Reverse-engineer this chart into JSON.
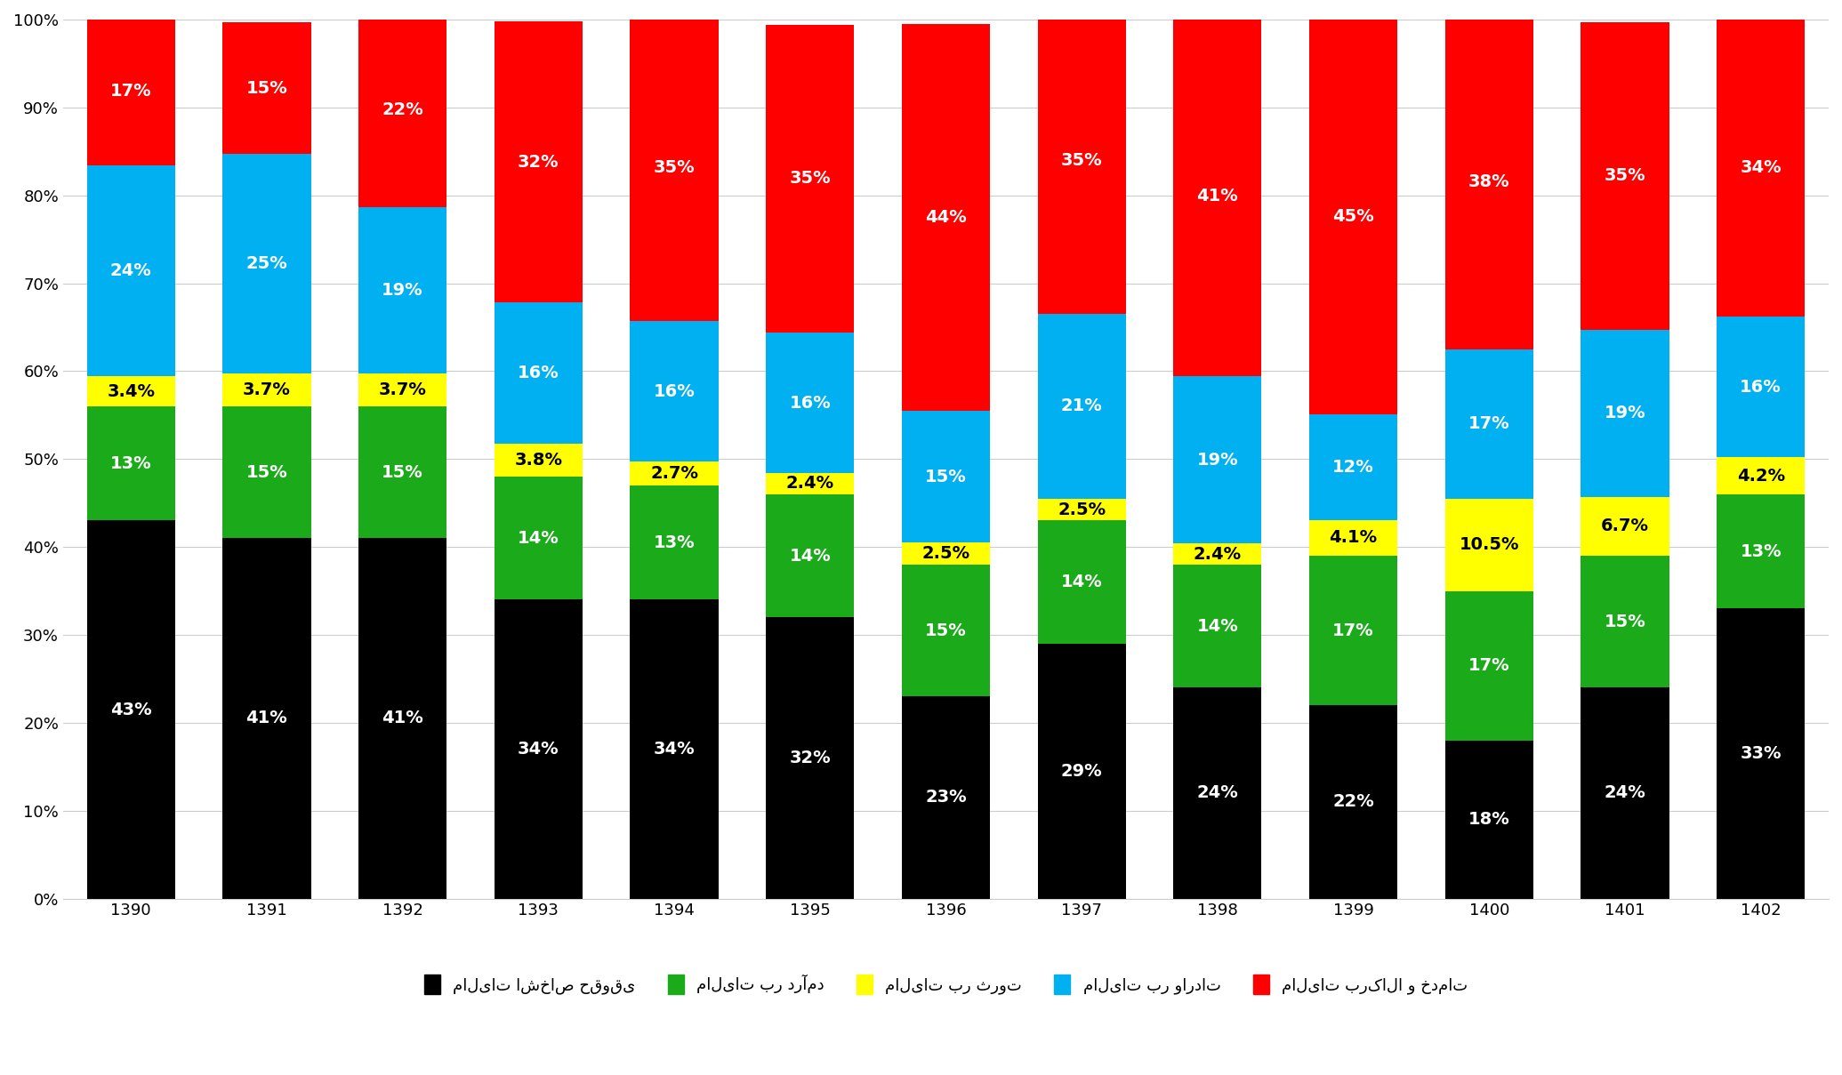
{
  "years": [
    "1390",
    "1391",
    "1392",
    "1393",
    "1394",
    "1395",
    "1396",
    "1397",
    "1398",
    "1399",
    "1400",
    "1401",
    "1402"
  ],
  "series": {
    "legal": [
      43,
      41,
      41,
      34,
      34,
      32,
      23,
      29,
      24,
      22,
      18,
      24,
      33
    ],
    "income": [
      13,
      15,
      15,
      14,
      13,
      14,
      15,
      14,
      14,
      17,
      17,
      15,
      13
    ],
    "wealth": [
      3.4,
      3.7,
      3.7,
      3.8,
      2.7,
      2.4,
      2.5,
      2.5,
      2.4,
      4.1,
      10.5,
      6.7,
      4.2
    ],
    "imports": [
      24,
      25,
      19,
      16,
      16,
      16,
      15,
      21,
      19,
      12,
      17,
      19,
      16
    ],
    "goods": [
      17,
      15,
      22,
      32,
      35,
      35,
      44,
      35,
      41,
      45,
      38,
      35,
      34
    ]
  },
  "labels": {
    "legal": [
      "43%",
      "41%",
      "41%",
      "34%",
      "34%",
      "32%",
      "23%",
      "29%",
      "24%",
      "22%",
      "18%",
      "24%",
      "33%"
    ],
    "income": [
      "13%",
      "15%",
      "15%",
      "14%",
      "13%",
      "14%",
      "15%",
      "14%",
      "14%",
      "17%",
      "17%",
      "15%",
      "13%"
    ],
    "wealth": [
      "3.4%",
      "3.7%",
      "3.7%",
      "3.8%",
      "2.7%",
      "2.4%",
      "2.5%",
      "2.5%",
      "2.4%",
      "4.1%",
      "10.5%",
      "6.7%",
      "4.2%"
    ],
    "imports": [
      "24%",
      "25%",
      "19%",
      "16%",
      "16%",
      "16%",
      "15%",
      "21%",
      "19%",
      "12%",
      "17%",
      "19%",
      "16%"
    ],
    "goods": [
      "17%",
      "15%",
      "22%",
      "32%",
      "35%",
      "35%",
      "44%",
      "35%",
      "41%",
      "45%",
      "38%",
      "35%",
      "34%"
    ]
  },
  "colors": {
    "legal": "#000000",
    "income": "#1aaa1a",
    "wealth": "#ffff00",
    "imports": "#00b0f0",
    "goods": "#ff0000"
  },
  "legend_labels": {
    "legal": "مالیات اشخاص حقوقی",
    "income": "مالیات بر درآمد",
    "wealth": "مالیات بر ثروت",
    "imports": "مالیات بر واردات",
    "goods": "مالیات برکالا و خدمات"
  },
  "background_color": "#ffffff",
  "label_text_colors": {
    "legal": "white",
    "income": "white",
    "wealth": "black",
    "imports": "white",
    "goods": "white"
  },
  "label_min_size": 2.0
}
